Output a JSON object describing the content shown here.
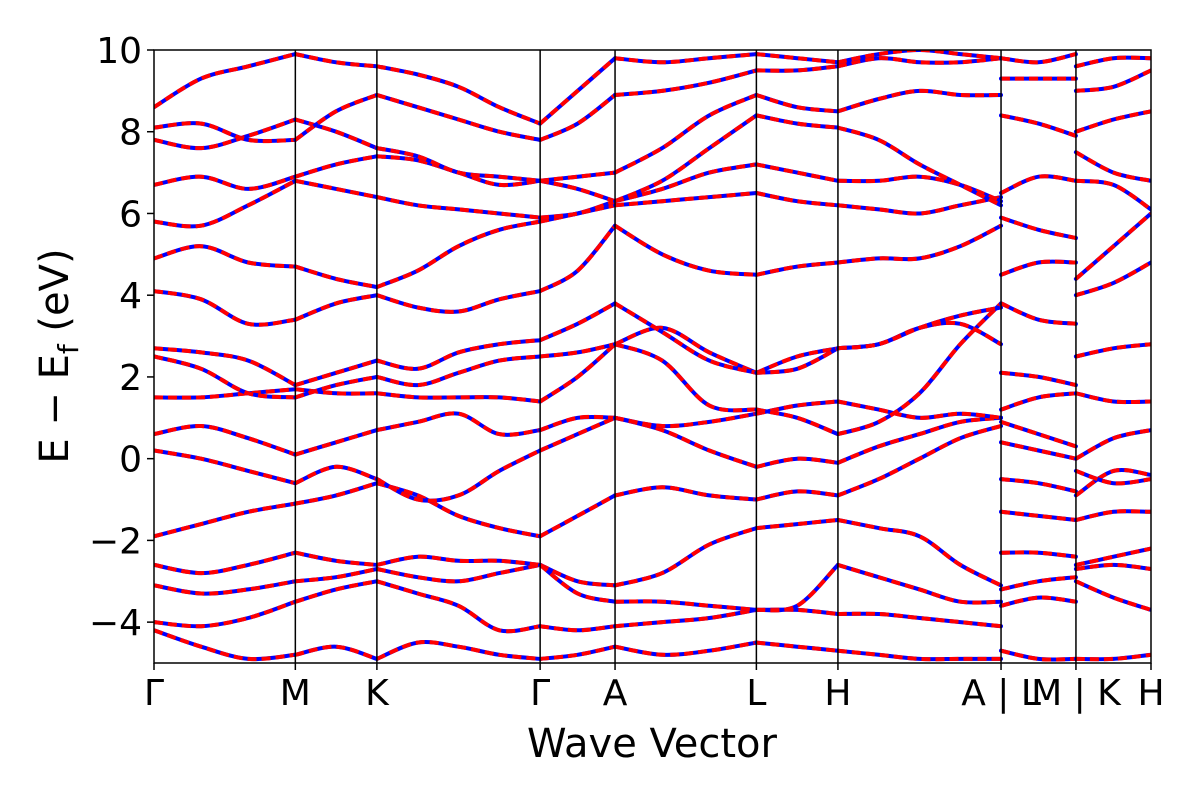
{
  "chart_data": {
    "type": "line",
    "title": "",
    "xlabel": "Wave Vector",
    "ylabel": "E − E_f (eV)",
    "ylabel_parts": {
      "main": "E − E",
      "sub": "f",
      "unit": " (eV)"
    },
    "ylim": [
      -5,
      10
    ],
    "yticks": [
      -4,
      -2,
      0,
      2,
      4,
      6,
      8,
      10
    ],
    "ytick_labels": [
      "−4",
      "−2",
      "0",
      "2",
      "4",
      "6",
      "8",
      "10"
    ],
    "k_path": [
      {
        "label": "Γ",
        "k": 0.0
      },
      {
        "label": "M",
        "k": 1.0
      },
      {
        "label": "K",
        "k": 1.577
      },
      {
        "label": "Γ",
        "k": 2.732
      },
      {
        "label": "A",
        "k": 3.262
      },
      {
        "label": "L",
        "k": 4.262
      },
      {
        "label": "H",
        "k": 4.839
      },
      {
        "label": "A | L",
        "k": 5.993
      },
      {
        "label": "M | K",
        "k": 6.523
      },
      {
        "label": "H",
        "k": 7.054
      }
    ],
    "x_range": [
      0.0,
      7.054
    ],
    "grid": false,
    "legend": "none",
    "series_colors": {
      "dft": "#0000ff",
      "model": "#ff0000"
    },
    "segments": [
      {
        "from": "Γ",
        "to": "M",
        "k0": 0.0,
        "k1": 1.0,
        "bands": [
          [
            -4.2,
            -4.6,
            -4.9,
            -4.8
          ],
          [
            -4.0,
            -4.1,
            -3.9,
            -3.5
          ],
          [
            -3.1,
            -3.3,
            -3.2,
            -3.0
          ],
          [
            -2.6,
            -2.8,
            -2.6,
            -2.3
          ],
          [
            -1.9,
            -1.6,
            -1.3,
            -1.1
          ],
          [
            0.2,
            0.0,
            -0.3,
            -0.6
          ],
          [
            0.6,
            0.8,
            0.5,
            0.1
          ],
          [
            1.5,
            1.5,
            1.6,
            1.7
          ],
          [
            2.5,
            2.2,
            1.6,
            1.5
          ],
          [
            2.7,
            2.6,
            2.4,
            1.8
          ],
          [
            4.1,
            3.9,
            3.3,
            3.4
          ],
          [
            4.9,
            5.2,
            4.8,
            4.7
          ],
          [
            5.8,
            5.7,
            6.2,
            6.8
          ],
          [
            6.7,
            6.9,
            6.6,
            6.9
          ],
          [
            7.8,
            7.6,
            7.9,
            8.3
          ],
          [
            8.1,
            8.2,
            7.8,
            7.8
          ],
          [
            8.6,
            9.3,
            9.6,
            9.9
          ]
        ]
      },
      {
        "from": "M",
        "to": "K",
        "k0": 1.0,
        "k1": 1.577,
        "bands": [
          [
            -4.8,
            -4.6,
            -4.9
          ],
          [
            -3.5,
            -3.2,
            -3.0
          ],
          [
            -3.0,
            -2.9,
            -2.7
          ],
          [
            -2.3,
            -2.5,
            -2.6
          ],
          [
            -1.1,
            -0.9,
            -0.6
          ],
          [
            -0.6,
            -0.2,
            -0.5
          ],
          [
            0.1,
            0.4,
            0.7
          ],
          [
            1.7,
            1.6,
            1.6
          ],
          [
            1.5,
            1.8,
            2.0
          ],
          [
            1.8,
            2.1,
            2.4
          ],
          [
            3.4,
            3.8,
            4.0
          ],
          [
            4.7,
            4.4,
            4.2
          ],
          [
            6.8,
            6.6,
            6.4
          ],
          [
            6.9,
            7.2,
            7.4
          ],
          [
            8.3,
            8.0,
            7.6
          ],
          [
            7.8,
            8.5,
            8.9
          ],
          [
            9.9,
            9.7,
            9.6
          ]
        ]
      },
      {
        "from": "K",
        "to": "Γ",
        "k0": 1.577,
        "k1": 2.732,
        "bands": [
          [
            -4.9,
            -4.5,
            -4.6,
            -4.8,
            -4.9
          ],
          [
            -3.0,
            -3.3,
            -3.6,
            -4.2,
            -4.1
          ],
          [
            -2.7,
            -2.9,
            -3.0,
            -2.8,
            -2.6
          ],
          [
            -2.6,
            -2.4,
            -2.5,
            -2.5,
            -2.6
          ],
          [
            -0.6,
            -0.9,
            -1.4,
            -1.7,
            -1.9
          ],
          [
            -0.5,
            -1.0,
            -0.9,
            -0.3,
            0.2
          ],
          [
            0.7,
            0.9,
            1.1,
            0.6,
            0.7
          ],
          [
            1.6,
            1.5,
            1.5,
            1.5,
            1.4
          ],
          [
            2.0,
            1.8,
            2.1,
            2.4,
            2.5
          ],
          [
            2.4,
            2.2,
            2.6,
            2.8,
            2.9
          ],
          [
            4.0,
            3.7,
            3.6,
            3.9,
            4.1
          ],
          [
            4.2,
            4.6,
            5.2,
            5.6,
            5.8
          ],
          [
            6.4,
            6.2,
            6.1,
            6.0,
            5.9
          ],
          [
            7.4,
            7.3,
            7.0,
            6.7,
            6.8
          ],
          [
            7.6,
            7.4,
            7.0,
            6.9,
            6.8
          ],
          [
            8.9,
            8.6,
            8.3,
            8.0,
            7.8
          ],
          [
            9.6,
            9.4,
            9.1,
            8.6,
            8.2
          ]
        ]
      },
      {
        "from": "Γ",
        "to": "A",
        "k0": 2.732,
        "k1": 3.262,
        "bands": [
          [
            -4.9,
            -4.8,
            -4.6
          ],
          [
            -4.1,
            -4.2,
            -4.1
          ],
          [
            -2.6,
            -3.0,
            -3.1
          ],
          [
            -2.6,
            -3.3,
            -3.5
          ],
          [
            -1.9,
            -1.4,
            -0.9
          ],
          [
            0.2,
            0.6,
            1.0
          ],
          [
            0.7,
            1.0,
            1.0
          ],
          [
            1.4,
            2.0,
            2.8
          ],
          [
            2.5,
            2.6,
            2.8
          ],
          [
            2.9,
            3.3,
            3.8
          ],
          [
            4.1,
            4.6,
            5.7
          ],
          [
            5.8,
            6.0,
            6.2
          ],
          [
            5.9,
            6.0,
            6.3
          ],
          [
            6.8,
            6.6,
            6.3
          ],
          [
            6.8,
            6.9,
            7.0
          ],
          [
            7.8,
            8.2,
            8.9
          ],
          [
            8.2,
            9.0,
            9.8
          ]
        ]
      },
      {
        "from": "A",
        "to": "L",
        "k0": 3.262,
        "k1": 4.262,
        "bands": [
          [
            -4.6,
            -4.8,
            -4.7,
            -4.5
          ],
          [
            -4.1,
            -4.0,
            -3.9,
            -3.7
          ],
          [
            -3.1,
            -2.8,
            -2.1,
            -1.7
          ],
          [
            -3.5,
            -3.5,
            -3.6,
            -3.7
          ],
          [
            -0.9,
            -0.7,
            -0.9,
            -1.0
          ],
          [
            1.0,
            0.7,
            0.2,
            -0.2
          ],
          [
            1.0,
            0.8,
            0.9,
            1.1
          ],
          [
            2.8,
            2.4,
            1.3,
            1.2
          ],
          [
            2.8,
            3.2,
            2.6,
            2.1
          ],
          [
            3.8,
            3.1,
            2.4,
            2.1
          ],
          [
            5.7,
            5.0,
            4.6,
            4.5
          ],
          [
            6.2,
            6.3,
            6.4,
            6.5
          ],
          [
            6.3,
            6.6,
            7.0,
            7.2
          ],
          [
            6.3,
            6.8,
            7.6,
            8.4
          ],
          [
            7.0,
            7.6,
            8.4,
            8.9
          ],
          [
            8.9,
            9.0,
            9.2,
            9.5
          ],
          [
            9.8,
            9.7,
            9.8,
            9.9
          ]
        ]
      },
      {
        "from": "L",
        "to": "H",
        "k0": 4.262,
        "k1": 4.839,
        "bands": [
          [
            -4.5,
            -4.6,
            -4.7
          ],
          [
            -3.7,
            -3.7,
            -3.8
          ],
          [
            -1.7,
            -1.6,
            -1.5
          ],
          [
            -3.7,
            -3.6,
            -2.6
          ],
          [
            -1.0,
            -0.8,
            -0.9
          ],
          [
            -0.2,
            0.0,
            -0.1
          ],
          [
            1.1,
            1.3,
            1.4
          ],
          [
            1.2,
            1.0,
            0.6
          ],
          [
            2.1,
            2.5,
            2.7
          ],
          [
            2.1,
            2.2,
            2.7
          ],
          [
            4.5,
            4.7,
            4.8
          ],
          [
            6.5,
            6.3,
            6.2
          ],
          [
            7.2,
            7.0,
            6.8
          ],
          [
            8.4,
            8.2,
            8.1
          ],
          [
            8.9,
            8.6,
            8.5
          ],
          [
            9.5,
            9.5,
            9.6
          ],
          [
            9.9,
            9.8,
            9.7
          ]
        ]
      },
      {
        "from": "H",
        "to": "A",
        "k0": 4.839,
        "k1": 5.993,
        "bands": [
          [
            -4.7,
            -4.8,
            -4.9,
            -4.9,
            -4.9
          ],
          [
            -3.8,
            -3.8,
            -3.9,
            -4.0,
            -4.1
          ],
          [
            -1.5,
            -1.7,
            -1.9,
            -2.6,
            -3.1
          ],
          [
            -2.6,
            -2.9,
            -3.2,
            -3.5,
            -3.5
          ],
          [
            -0.9,
            -0.5,
            0.0,
            0.5,
            0.8
          ],
          [
            -0.1,
            0.3,
            0.6,
            0.9,
            1.0
          ],
          [
            1.4,
            1.2,
            1.0,
            1.1,
            1.0
          ],
          [
            0.6,
            0.9,
            1.6,
            2.8,
            3.8
          ],
          [
            2.7,
            2.8,
            3.2,
            3.3,
            2.8
          ],
          [
            2.7,
            2.8,
            3.2,
            3.5,
            3.7
          ],
          [
            4.8,
            4.9,
            4.9,
            5.2,
            5.7
          ],
          [
            6.2,
            6.1,
            6.0,
            6.2,
            6.4
          ],
          [
            6.8,
            6.8,
            6.9,
            6.7,
            6.3
          ],
          [
            8.1,
            7.8,
            7.2,
            6.7,
            6.2
          ],
          [
            8.5,
            8.8,
            9.0,
            8.9,
            8.9
          ],
          [
            9.6,
            9.8,
            9.7,
            9.7,
            9.8
          ],
          [
            9.7,
            9.9,
            10.0,
            9.9,
            9.8
          ]
        ]
      },
      {
        "from": "L",
        "to": "M",
        "k0": 5.993,
        "k1": 6.523,
        "bands": [
          [
            -4.7,
            -4.9,
            -4.9
          ],
          [
            -3.6,
            -3.4,
            -3.5
          ],
          [
            -3.2,
            -3.0,
            -2.9
          ],
          [
            -2.3,
            -2.3,
            -2.4
          ],
          [
            -1.3,
            -1.4,
            -1.5
          ],
          [
            -0.5,
            -0.6,
            -0.8
          ],
          [
            0.4,
            0.2,
            0.0
          ],
          [
            0.9,
            0.6,
            0.3
          ],
          [
            1.2,
            1.5,
            1.6
          ],
          [
            2.1,
            2.0,
            1.8
          ],
          [
            4.5,
            4.8,
            4.8
          ],
          [
            3.8,
            3.4,
            3.3
          ],
          [
            5.9,
            5.6,
            5.4
          ],
          [
            6.5,
            6.9,
            6.8
          ],
          [
            8.4,
            8.2,
            7.9
          ],
          [
            9.3,
            9.3,
            9.3
          ],
          [
            9.8,
            9.7,
            9.9
          ]
        ]
      },
      {
        "from": "K",
        "to": "H",
        "k0": 6.523,
        "k1": 7.054,
        "bands": [
          [
            -4.9,
            -4.9,
            -4.8
          ],
          [
            -3.0,
            -3.4,
            -3.7
          ],
          [
            -2.7,
            -2.6,
            -2.7
          ],
          [
            -2.6,
            -2.4,
            -2.2
          ],
          [
            -1.5,
            -1.3,
            -1.3
          ],
          [
            -0.9,
            -0.3,
            -0.4
          ],
          [
            -0.3,
            -0.6,
            -0.5
          ],
          [
            0.0,
            0.5,
            0.7
          ],
          [
            1.6,
            1.4,
            1.4
          ],
          [
            2.5,
            2.7,
            2.8
          ],
          [
            4.0,
            4.3,
            4.8
          ],
          [
            4.4,
            5.2,
            6.0
          ],
          [
            6.8,
            6.7,
            6.1
          ],
          [
            7.5,
            7.0,
            6.8
          ],
          [
            8.0,
            8.3,
            8.5
          ],
          [
            9.0,
            9.1,
            9.5
          ],
          [
            9.6,
            9.8,
            9.8
          ]
        ]
      }
    ]
  }
}
